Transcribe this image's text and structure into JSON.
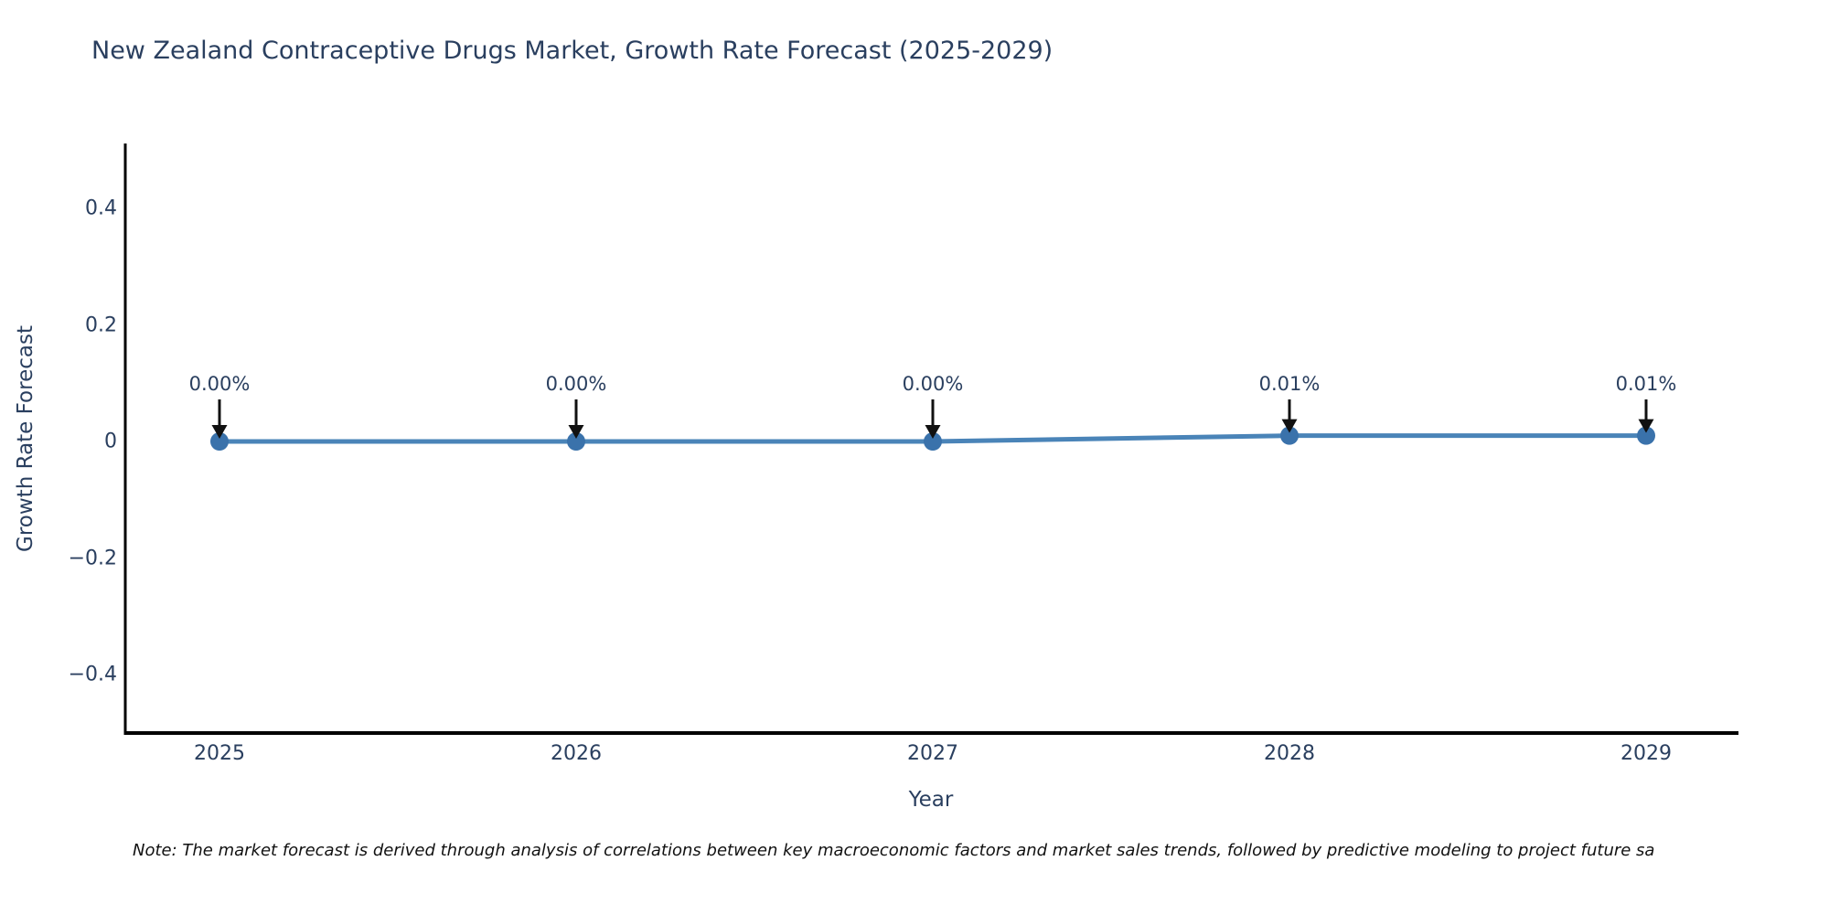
{
  "title": "New Zealand Contraceptive Drugs Market, Growth Rate Forecast (2025-2029)",
  "note": "Note: The market forecast is derived through analysis of correlations between key macroeconomic factors and market sales trends, followed by predictive modeling to project future sa",
  "chart_data": {
    "type": "line",
    "title": "New Zealand Contraceptive Drugs Market, Growth Rate Forecast (2025-2029)",
    "xlabel": "Year",
    "ylabel": "Growth Rate Forecast",
    "categories": [
      "2025",
      "2026",
      "2027",
      "2028",
      "2029"
    ],
    "values": [
      0.0,
      0.0,
      0.0,
      0.01,
      0.01
    ],
    "point_labels": [
      "0.00%",
      "0.00%",
      "0.00%",
      "0.01%",
      "0.01%"
    ],
    "yticks": [
      0.4,
      0.2,
      0,
      -0.2,
      -0.4
    ],
    "ytick_labels": [
      "0.4",
      "0.2",
      "0",
      "−0.2",
      "−0.4"
    ],
    "ylim": [
      -0.5,
      0.51
    ],
    "grid": false,
    "legend": "none",
    "line_color": "#4a84b8",
    "marker_color": "#3a72ab",
    "arrow_color": "#111111",
    "axis_color": "#000000",
    "text_color": "#2a3f5f"
  }
}
